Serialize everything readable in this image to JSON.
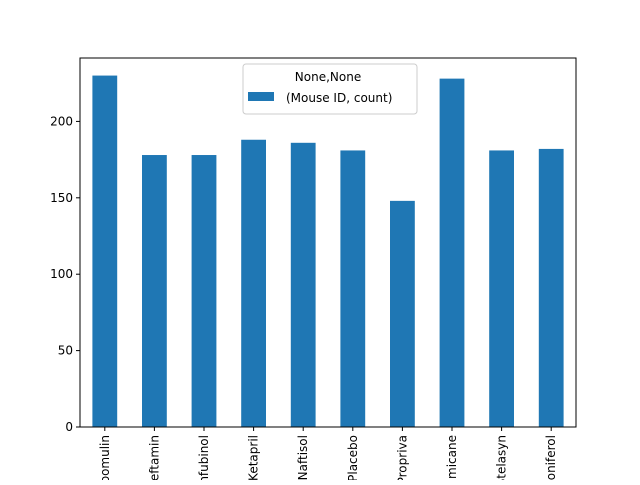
{
  "chart_data": {
    "type": "bar",
    "categories": [
      "Capomulin",
      "Ceftamin",
      "Infubinol",
      "Ketapril",
      "Naftisol",
      "Placebo",
      "Propriva",
      "Ramicane",
      "Stelasyn",
      "Zoniferol"
    ],
    "series": [
      {
        "name": "(Mouse ID, count)",
        "values": [
          230,
          178,
          178,
          188,
          186,
          181,
          148,
          228,
          181,
          182
        ]
      }
    ],
    "title": "",
    "xlabel": "",
    "ylabel": "",
    "ylim": [
      0,
      241.5
    ],
    "yticks": [
      0,
      50,
      100,
      150,
      200
    ],
    "grid": false,
    "legend": {
      "title": "None,None",
      "placement": "upper-center"
    },
    "colors": {
      "bar": "#1f77b4"
    }
  }
}
